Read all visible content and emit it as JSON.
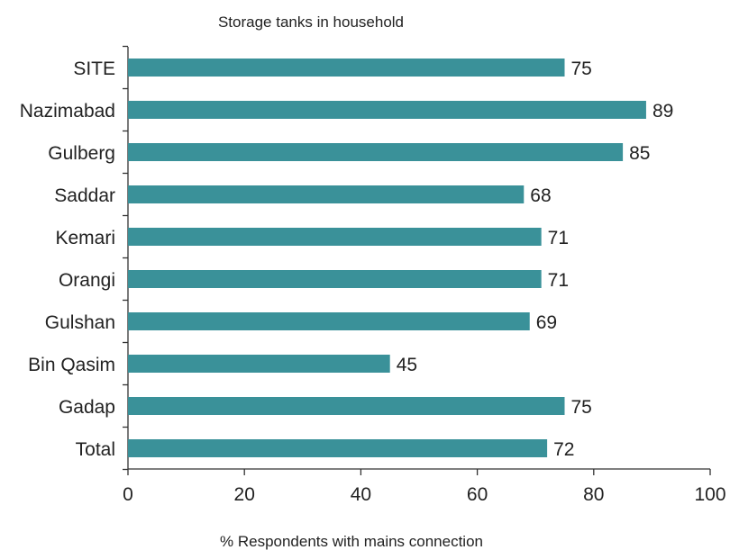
{
  "chart_data": {
    "type": "bar",
    "orientation": "horizontal",
    "title": "Storage tanks in household",
    "xlabel": "% Respondents with mains connection",
    "ylabel": "",
    "categories": [
      "SITE",
      "Nazimabad",
      "Gulberg",
      "Saddar",
      "Kemari",
      "Orangi",
      "Gulshan",
      "Bin Qasim",
      "Gadap",
      "Total"
    ],
    "values": [
      75,
      89,
      85,
      68,
      71,
      71,
      69,
      45,
      75,
      72
    ],
    "xlim": [
      0,
      100
    ],
    "xticks": [
      0,
      20,
      40,
      60,
      80,
      100
    ],
    "xtick_labels": [
      "0",
      "20",
      "40",
      "60",
      "80",
      "100"
    ],
    "data_labels": [
      "75",
      "89",
      "85",
      "68",
      "71",
      "71",
      "69",
      "45",
      "75",
      "72"
    ],
    "grid": false,
    "legend": "none",
    "bar_color": "#3a9199"
  }
}
